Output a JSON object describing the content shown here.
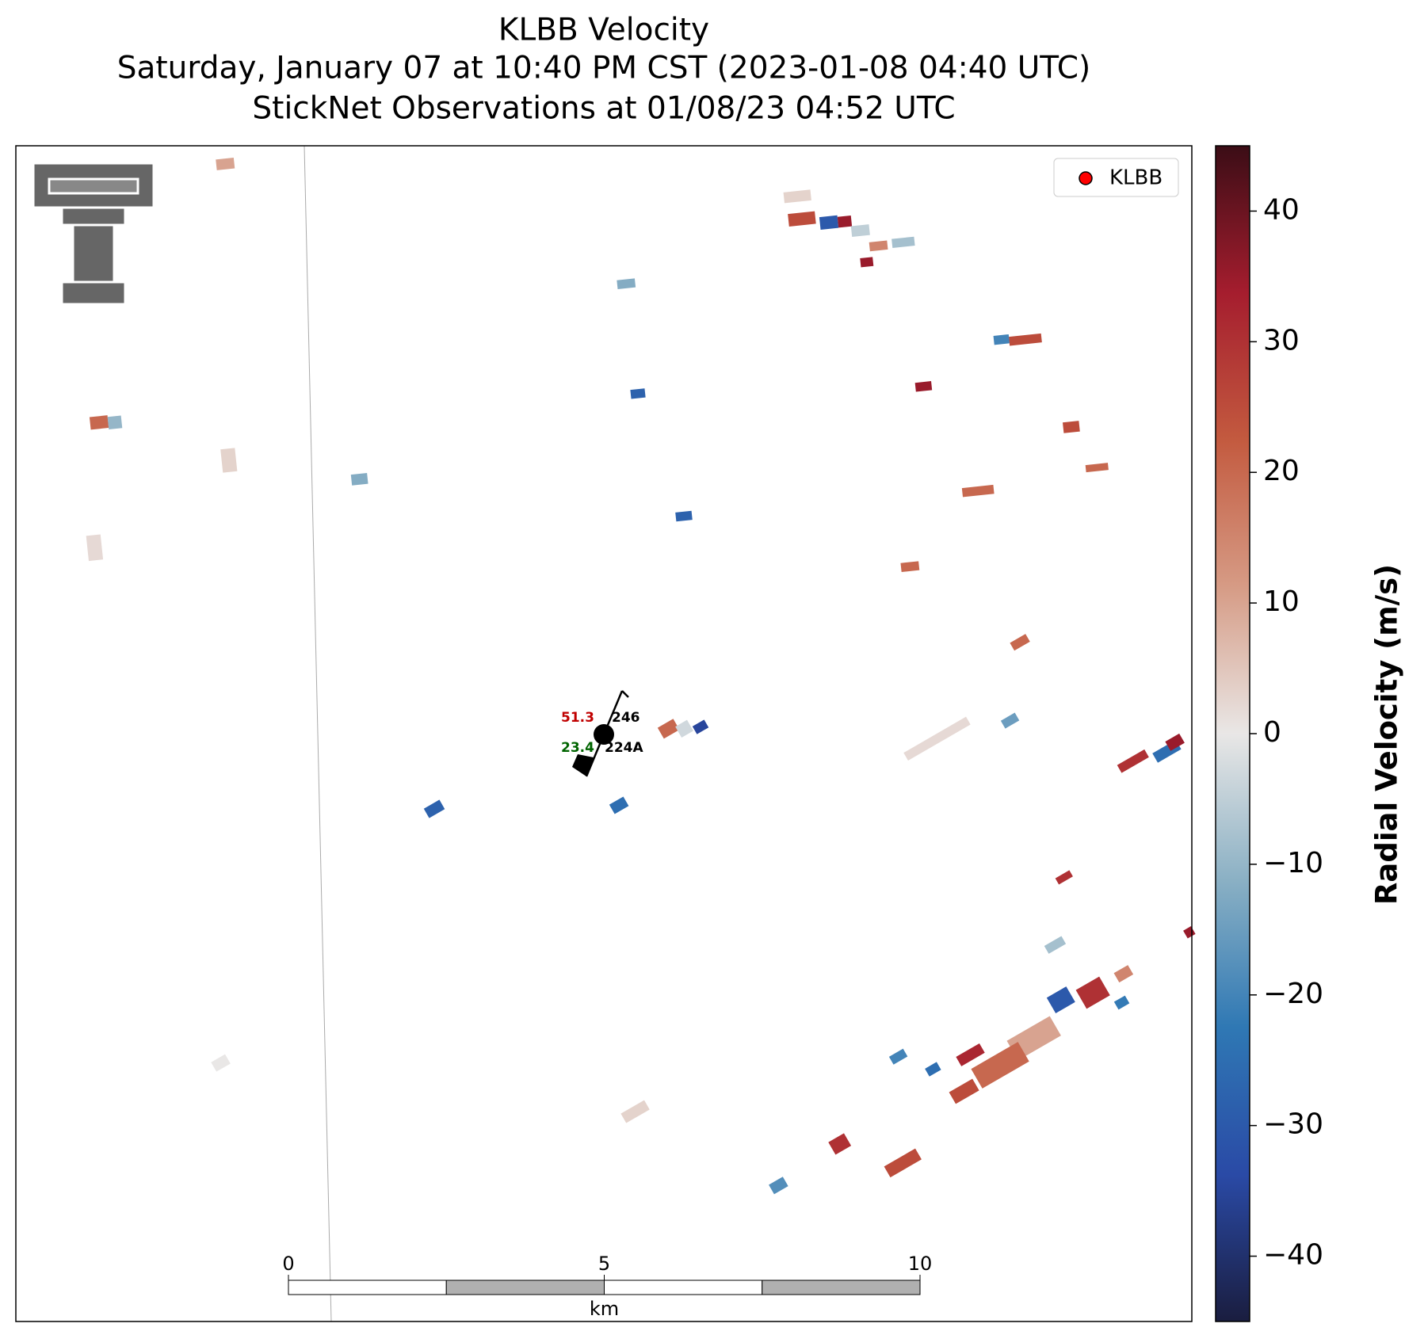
{
  "chart_data": {
    "type": "radar",
    "title": "KLBB Velocity",
    "subtitle": "Saturday, January 07 at 10:40 PM CST (2023-01-08 04:40 UTC)",
    "subtitle2": "StickNet Observations at 01/08/23 04:52 UTC",
    "colorbar": {
      "label": "Radial Velocity (m/s)",
      "lim": [
        -45,
        45
      ],
      "ticks": [
        {
          "value": -40,
          "label": "−40"
        },
        {
          "value": -30,
          "label": "−30"
        },
        {
          "value": -20,
          "label": "−20"
        },
        {
          "value": -10,
          "label": "−10"
        },
        0,
        10,
        20,
        30,
        40
      ],
      "colormap": [
        "#1a1d3f",
        "#2a4aa6",
        "#2f78b4",
        "#8ab0c4",
        "#e9e7e6",
        "#d69b85",
        "#c35a3f",
        "#a51d2e",
        "#3b0d16"
      ]
    },
    "legend": {
      "label": "KLBB",
      "color": "#ff0000",
      "corner": "upper right"
    },
    "station": {
      "id": "224A",
      "temperature": 51.3,
      "dewpoint": 23.4,
      "pressure": 246
    },
    "scale_bar": {
      "lim": [
        0,
        10
      ],
      "ticks": [
        0,
        5,
        10
      ],
      "unit": "km"
    },
    "gates": [
      25,
      -30,
      35,
      -5,
      15,
      35,
      -8,
      3,
      35,
      25,
      -20,
      25,
      20,
      20,
      20,
      20,
      -15,
      30,
      -25,
      35,
      2,
      -28,
      -12,
      -28,
      20,
      -3,
      -35,
      -28,
      -25,
      20,
      -10,
      -12,
      10,
      3,
      2,
      -30,
      30,
      10,
      20,
      25,
      32,
      -20,
      -25,
      30,
      25,
      -18,
      3,
      0,
      -8,
      30,
      -22,
      35,
      15
    ]
  }
}
